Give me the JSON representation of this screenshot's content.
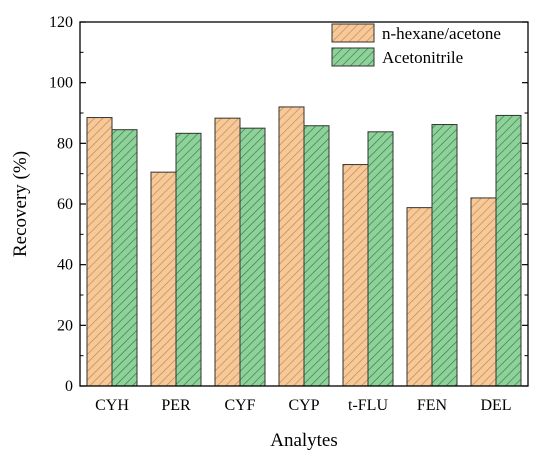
{
  "chart_data": {
    "type": "bar",
    "title": "",
    "xlabel": "Analytes",
    "ylabel": "Recovery (%)",
    "ylim": [
      0,
      120
    ],
    "yticks": [
      0,
      20,
      40,
      60,
      80,
      100,
      120
    ],
    "categories": [
      "CYH",
      "PER",
      "CYF",
      "CYP",
      "t-FLU",
      "FEN",
      "DEL"
    ],
    "series": [
      {
        "name": "n-hexane/acetone",
        "color": "#f5c99a",
        "hatch_color": "#c8823e",
        "values": [
          88.5,
          70.5,
          88.3,
          92.0,
          73.0,
          58.8,
          62.0
        ]
      },
      {
        "name": "Acetonitrile",
        "color": "#8fd19a",
        "hatch_color": "#2e7d3e",
        "values": [
          84.5,
          83.3,
          85.0,
          85.8,
          83.8,
          86.2,
          89.2
        ]
      }
    ],
    "legend_position": "top-right",
    "grid": false
  }
}
